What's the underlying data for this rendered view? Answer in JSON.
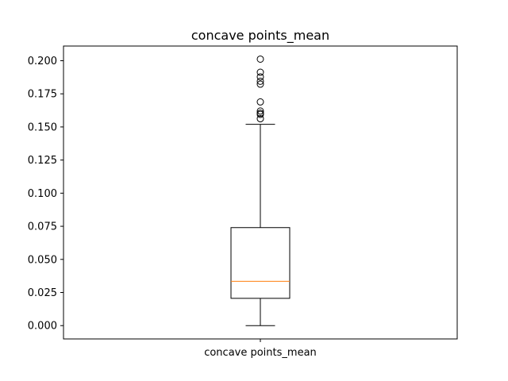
{
  "chart_data": {
    "type": "box",
    "title": "concave points_mean",
    "xlabel": "",
    "ylabel": "",
    "categories": [
      "concave points_mean"
    ],
    "ylim": [
      -0.01005,
      0.21108
    ],
    "yticks": [
      0.0,
      0.025,
      0.05,
      0.075,
      0.1,
      0.125,
      0.15,
      0.175,
      0.2
    ],
    "ytick_labels": [
      "0.000",
      "0.025",
      "0.050",
      "0.075",
      "0.100",
      "0.125",
      "0.150",
      "0.175",
      "0.200"
    ],
    "grid": false,
    "box": {
      "whisker_low": 0.0,
      "q1": 0.0206,
      "median": 0.0335,
      "q3": 0.074,
      "whisker_high": 0.152,
      "outliers": [
        0.2012,
        0.1913,
        0.1878,
        0.1845,
        0.1823,
        0.1689,
        0.162,
        0.1604,
        0.1595,
        0.1562
      ]
    },
    "colors": {
      "box": "#000000",
      "median": "#ff7f0e",
      "frame": "#000000"
    }
  }
}
